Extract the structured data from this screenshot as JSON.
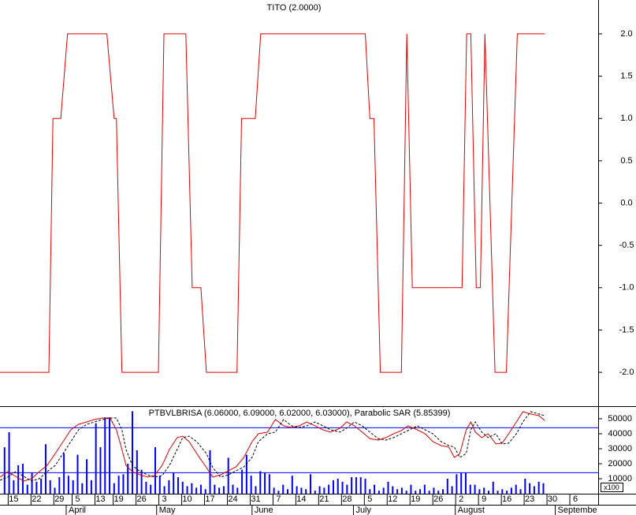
{
  "chart_data": [
    {
      "type": "line",
      "title": "TITO (2.0000)",
      "color": "#e00000",
      "xlim": [
        -1,
        130
      ],
      "ylim": [
        -2.4,
        2.4
      ],
      "yticks": [
        {
          "value": 2,
          "label": "2.0"
        },
        {
          "value": 1.5,
          "label": "1.5"
        },
        {
          "value": 1,
          "label": "1.0"
        },
        {
          "value": 0.5,
          "label": "0.5"
        },
        {
          "value": 0,
          "label": "0.0"
        },
        {
          "value": -0.5,
          "label": "-0.5"
        },
        {
          "value": -1,
          "label": "-1.0"
        },
        {
          "value": -1.5,
          "label": "-1.5"
        },
        {
          "value": -2,
          "label": "-2.0"
        }
      ],
      "x": [
        -1,
        9.7,
        10.6,
        12.3,
        13.8,
        22.4,
        24,
        24.5,
        25.7,
        33.7,
        34.9,
        39.7,
        41.1,
        43,
        44.2,
        50.9,
        51.9,
        54.9,
        56.1,
        79,
        80,
        80.9,
        82.3,
        86.9,
        88.1,
        89.3,
        100.2,
        101.2,
        102.1,
        103.3,
        104.2,
        105.2,
        107.4,
        109.9,
        112.3,
        118.3
      ],
      "values": [
        -2,
        -2,
        1,
        1,
        2,
        2,
        1,
        1,
        -2,
        -2,
        2,
        2,
        -1,
        -1,
        -2,
        -2,
        1,
        1,
        2,
        2,
        1,
        1,
        -2,
        -2,
        2,
        -1,
        -1,
        2,
        2,
        -1,
        -1,
        2,
        -2,
        -2,
        2,
        2
      ]
    },
    {
      "type": "combo",
      "title": "PTBVLBRISA (6.06000, 6.09000, 6.02000, 6.03000), Parabolic SAR (5.85399)",
      "y_multiplier_label": "x100",
      "xlim": [
        -1,
        130
      ],
      "ylim": [
        0,
        58400
      ],
      "yticks": [
        50000,
        40000,
        30000,
        20000,
        10000
      ],
      "hlines": [
        44000,
        14000
      ],
      "hline_color": "#0000ff",
      "xticks": [
        {
          "value": 2,
          "label": "15"
        },
        {
          "value": 7,
          "label": "22"
        },
        {
          "value": 12,
          "label": "29"
        },
        {
          "value": 16,
          "label": "5"
        },
        {
          "value": 21,
          "label": "13"
        },
        {
          "value": 25,
          "label": "19"
        },
        {
          "value": 30,
          "label": "26"
        },
        {
          "value": 35,
          "label": "3"
        },
        {
          "value": 40,
          "label": "10"
        },
        {
          "value": 45,
          "label": "17"
        },
        {
          "value": 50,
          "label": "24"
        },
        {
          "value": 55,
          "label": "31"
        },
        {
          "value": 60,
          "label": "7"
        },
        {
          "value": 65,
          "label": "14"
        },
        {
          "value": 70,
          "label": "21"
        },
        {
          "value": 75,
          "label": "28"
        },
        {
          "value": 80,
          "label": "5"
        },
        {
          "value": 85,
          "label": "12"
        },
        {
          "value": 90,
          "label": "19"
        },
        {
          "value": 95,
          "label": "26"
        },
        {
          "value": 100,
          "label": "2"
        },
        {
          "value": 105,
          "label": "9"
        },
        {
          "value": 110,
          "label": "16"
        },
        {
          "value": 115,
          "label": "23"
        },
        {
          "value": 120,
          "label": "30"
        },
        {
          "value": 125,
          "label": "6"
        }
      ],
      "months": [
        {
          "value": 13.5,
          "label": "April"
        },
        {
          "value": 33.3,
          "label": "May"
        },
        {
          "value": 54.2,
          "label": "June"
        },
        {
          "value": 76.4,
          "label": "July"
        },
        {
          "value": 98.7,
          "label": "August"
        },
        {
          "value": 120.6,
          "label": "Septembe"
        }
      ],
      "series": [
        {
          "kind": "bar",
          "color": "#0000ff",
          "x": [
            0,
            1,
            2,
            3,
            4,
            5,
            6,
            7,
            8,
            9,
            10,
            11,
            12,
            13,
            14,
            15,
            16,
            17,
            18,
            19,
            20,
            21,
            22,
            23,
            24,
            25,
            26,
            27,
            28,
            29,
            30,
            31,
            32,
            33,
            34,
            35,
            36,
            37,
            38,
            39,
            40,
            41,
            42,
            43,
            44,
            45,
            46,
            47,
            48,
            49,
            50,
            51,
            52,
            53,
            54,
            55,
            56,
            57,
            58,
            59,
            60,
            61,
            62,
            63,
            64,
            65,
            66,
            67,
            68,
            69,
            70,
            71,
            72,
            73,
            74,
            75,
            76,
            77,
            78,
            79,
            80,
            81,
            82,
            83,
            84,
            85,
            86,
            87,
            88,
            89,
            90,
            91,
            92,
            93,
            94,
            95,
            96,
            97,
            98,
            99,
            100,
            101,
            102,
            103,
            104,
            105,
            106,
            107,
            108,
            109,
            110,
            111,
            112,
            113,
            114,
            115,
            116,
            117,
            118
          ],
          "values": [
            31000,
            41000,
            9000,
            19000,
            20000,
            6000,
            14000,
            8000,
            10000,
            33000,
            9000,
            4000,
            11000,
            27000,
            12000,
            9000,
            26000,
            7000,
            23000,
            9000,
            47000,
            31000,
            51000,
            51000,
            7000,
            12000,
            13000,
            20000,
            55000,
            29000,
            16000,
            8000,
            6000,
            31000,
            12000,
            5000,
            9000,
            14000,
            11000,
            8000,
            5000,
            7000,
            4000,
            6000,
            3000,
            29000,
            6000,
            4000,
            5000,
            24000,
            6000,
            4000,
            16000,
            26000,
            12000,
            5000,
            15000,
            14000,
            13000,
            4000,
            2000,
            6000,
            3000,
            12000,
            5000,
            4000,
            3000,
            13000,
            2000,
            5000,
            4000,
            6000,
            9000,
            10000,
            8000,
            6000,
            11000,
            11000,
            11000,
            10000,
            3000,
            6000,
            2000,
            4000,
            8000,
            5000,
            3000,
            4000,
            2000,
            6000,
            2000,
            3000,
            6000,
            2000,
            4000,
            2000,
            3000,
            10000,
            5000,
            13000,
            14000,
            14000,
            6000,
            6000,
            3000,
            4000,
            2000,
            8000,
            2000,
            3000,
            2000,
            4000,
            6000,
            3000,
            10000,
            7000,
            5000,
            8000,
            7000
          ]
        },
        {
          "kind": "line",
          "color": "#e00000",
          "dash": false,
          "x": [
            -1,
            0.7,
            2.4,
            4.2,
            5.9,
            7.6,
            9.3,
            11.1,
            12.8,
            14.5,
            16.2,
            18,
            19.7,
            21.4,
            23.1,
            24.5,
            25.7,
            26.6,
            28,
            29.7,
            31.4,
            32.8,
            34.5,
            36.1,
            37.8,
            39,
            40.4,
            42.1,
            44.2,
            45.6,
            47.3,
            49,
            50.7,
            52.4,
            54.2,
            55.6,
            57.6,
            59.3,
            61.1,
            62.8,
            64.5,
            66.2,
            68,
            69.7,
            71.4,
            73.5,
            74.9,
            76.6,
            78.3,
            80,
            81.8,
            83.5,
            85.2,
            86.9,
            88.3,
            90.4,
            92.1,
            93.8,
            95.6,
            97.3,
            98.5,
            99.7,
            101.1,
            102.1,
            103.1,
            104.5,
            105.9,
            107.6,
            109,
            110.4,
            112.1,
            113.5,
            115.2,
            117,
            118.3
          ],
          "values": [
            11100,
            14700,
            11600,
            8400,
            10000,
            14700,
            18900,
            26800,
            34700,
            42600,
            46300,
            47900,
            49500,
            50500,
            50500,
            42600,
            29500,
            18900,
            14700,
            12600,
            11100,
            12100,
            18900,
            29500,
            37400,
            38400,
            34700,
            26800,
            17400,
            11100,
            12600,
            15300,
            17900,
            24200,
            34700,
            40000,
            41100,
            49500,
            45300,
            44200,
            45300,
            47900,
            45300,
            42600,
            41100,
            43700,
            47900,
            45300,
            41100,
            36800,
            35800,
            37400,
            40000,
            42100,
            45300,
            42600,
            40000,
            34700,
            32100,
            31100,
            24200,
            26800,
            42600,
            47900,
            41100,
            37400,
            40000,
            33200,
            33700,
            40000,
            47900,
            54700,
            53200,
            52100,
            48900
          ]
        },
        {
          "kind": "line",
          "color": "#000000",
          "dash": true,
          "x": [
            -1,
            0.7,
            2.4,
            4.2,
            5.9,
            7.6,
            9.3,
            11.1,
            12.8,
            14.5,
            16.2,
            18,
            19.7,
            21.4,
            23.1,
            24.5,
            25.7,
            26.6,
            28,
            29.7,
            31.4,
            32.8,
            34.5,
            36.1,
            37.8,
            39,
            40.4,
            42.1,
            44.2,
            45.6,
            47.3,
            49,
            50.7,
            52.4,
            54.2,
            55.6,
            57.6,
            59.3,
            61.1,
            62.8,
            64.5,
            66.2,
            68,
            69.7,
            71.4,
            73.5,
            74.9,
            76.6,
            78.3,
            80,
            81.8,
            83.5,
            85.2,
            86.9,
            88.3,
            90.4,
            92.1,
            93.8,
            95.6,
            97.3,
            98.5,
            99.7,
            101.1,
            102.1,
            103.1,
            104.5,
            105.9,
            107.6,
            109,
            110.4,
            112.1,
            113.5,
            115.2,
            117,
            118.3
          ],
          "values": [
            9000,
            11100,
            14700,
            11600,
            8400,
            10000,
            14700,
            18900,
            26800,
            34700,
            42600,
            46300,
            47900,
            49500,
            50500,
            50500,
            42600,
            29500,
            18900,
            14700,
            12600,
            11100,
            12100,
            18900,
            29500,
            37400,
            38400,
            34700,
            26800,
            17400,
            11100,
            12600,
            15300,
            17900,
            24200,
            34700,
            40000,
            41100,
            49500,
            45300,
            44200,
            45300,
            47900,
            45300,
            42600,
            41100,
            43700,
            47900,
            45300,
            41100,
            36800,
            35800,
            37400,
            40000,
            42100,
            45300,
            42600,
            40000,
            34700,
            32100,
            31100,
            24200,
            26800,
            42600,
            47900,
            41100,
            37400,
            40000,
            33200,
            33700,
            40000,
            47900,
            54700,
            53200,
            52100
          ]
        }
      ]
    }
  ]
}
